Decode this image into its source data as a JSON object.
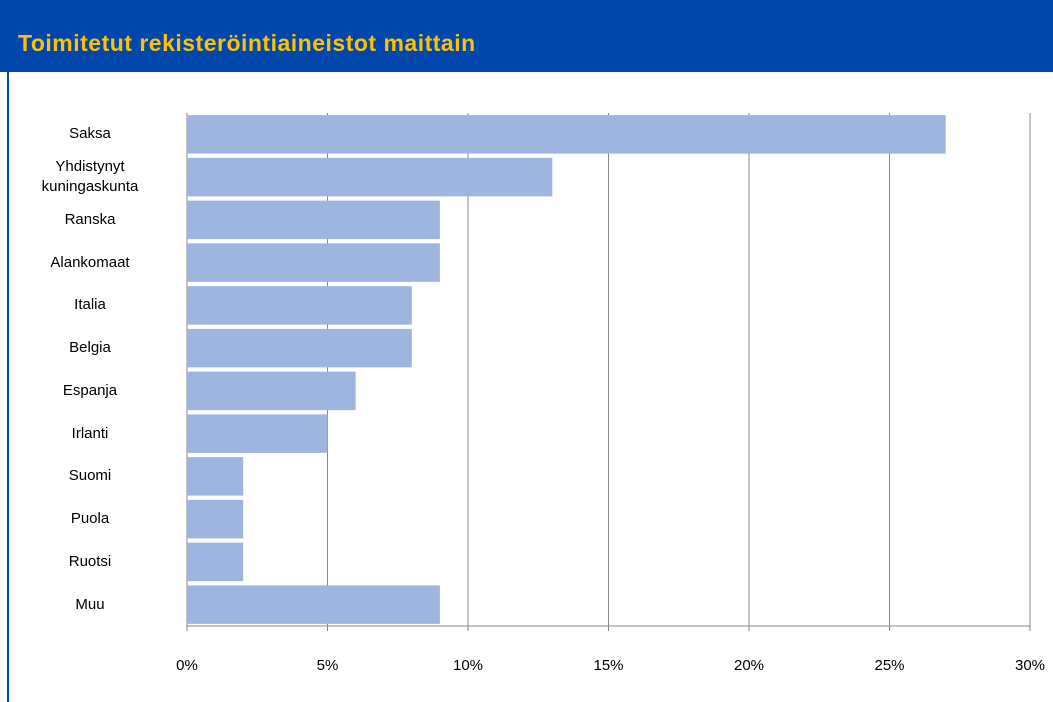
{
  "chart_data": {
    "type": "bar",
    "orientation": "horizontal",
    "title": "Toimitetut rekisteröintiaineistot maittain",
    "categories": [
      "Saksa",
      "Yhdistynyt kuningaskunta",
      "Ranska",
      "Alankomaat",
      "Italia",
      "Belgia",
      "Espanja",
      "Irlanti",
      "Suomi",
      "Puola",
      "Ruotsi",
      "Muu"
    ],
    "values": [
      27,
      13,
      9,
      9,
      8,
      8,
      6,
      5,
      2,
      2,
      2,
      9
    ],
    "color": "#9db5df",
    "xlim": [
      0,
      30
    ],
    "xticks": [
      {
        "value": 0,
        "label": "0%"
      },
      {
        "value": 5,
        "label": "5%"
      },
      {
        "value": 10,
        "label": "10%"
      },
      {
        "value": 15,
        "label": "15%"
      },
      {
        "value": 20,
        "label": "20%"
      },
      {
        "value": 25,
        "label": "25%"
      },
      {
        "value": 30,
        "label": "30%"
      }
    ],
    "grid": true
  }
}
